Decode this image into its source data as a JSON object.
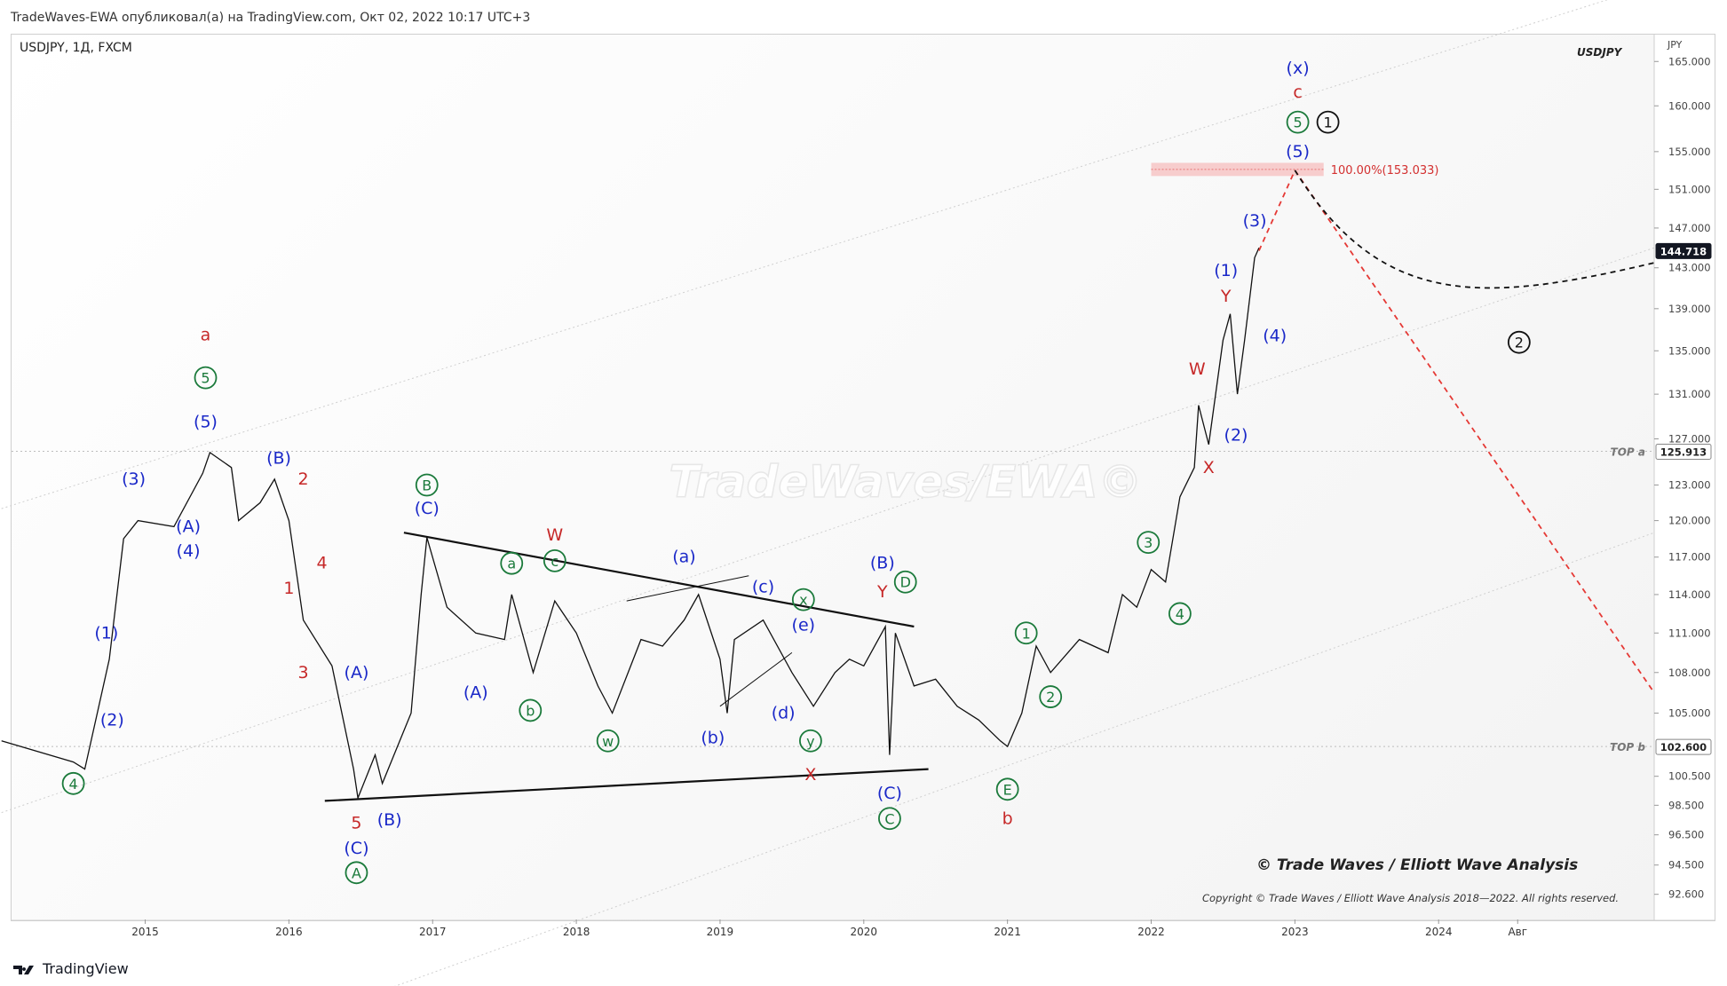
{
  "caption": "TradeWaves-EWA опубликовал(а) на TradingView.com, Окт 02, 2022 10:17 UTC+3",
  "symbol_label": "USDJPY, 1Д, FXCM",
  "symbol_right": "USDJPY",
  "footer_brand": "TradingView",
  "watermark": "TradeWaves/EWA©",
  "copyright_main": "© Trade Waves / Elliott Wave Analysis",
  "copyright_small": "Copyright © Trade Waves / Elliott Wave Analysis 2018—2022. All rights reserved.",
  "chart_data": {
    "type": "line",
    "title": "USDJPY, 1Д, FXCM",
    "ylabel": "JPY",
    "ylim": [
      91,
      168
    ],
    "yscale": "log",
    "y_ticks": [
      92.6,
      94.5,
      96.5,
      98.5,
      100.5,
      105.0,
      108.0,
      111.0,
      114.0,
      117.0,
      120.0,
      123.0,
      127.0,
      131.0,
      135.0,
      139.0,
      143.0,
      147.0,
      151.0,
      155.0,
      160.0,
      165.0
    ],
    "x_ticks": [
      {
        "t": 2015,
        "label": "2015"
      },
      {
        "t": 2016,
        "label": "2016"
      },
      {
        "t": 2017,
        "label": "2017"
      },
      {
        "t": 2018,
        "label": "2018"
      },
      {
        "t": 2019,
        "label": "2019"
      },
      {
        "t": 2020,
        "label": "2020"
      },
      {
        "t": 2021,
        "label": "2021"
      },
      {
        "t": 2022,
        "label": "2022"
      },
      {
        "t": 2023,
        "label": "2023"
      },
      {
        "t": 2024,
        "label": "2024"
      },
      {
        "t": 2024.55,
        "label": "Авг"
      }
    ],
    "xlim": [
      2014.07,
      2025.5
    ],
    "price_badges": [
      {
        "value": 144.718,
        "label": "144.718",
        "style": "dark"
      },
      {
        "value": 125.913,
        "label": "125.913",
        "style": "light"
      },
      {
        "value": 102.6,
        "label": "102.600",
        "style": "light"
      }
    ],
    "level_lines": [
      {
        "value": 125.913,
        "label": "TOP a"
      },
      {
        "value": 102.6,
        "label": "TOP b"
      }
    ],
    "target_zone": {
      "from": 2022.0,
      "to": 2023.2,
      "low": 152.4,
      "high": 153.8,
      "label": "100.00%(153.033)"
    },
    "price_series": {
      "name": "USDJPY",
      "points": [
        [
          2014.0,
          103.0
        ],
        [
          2014.5,
          101.5
        ],
        [
          2014.58,
          101.0
        ],
        [
          2014.75,
          109.0
        ],
        [
          2014.85,
          118.5
        ],
        [
          2014.95,
          120.0
        ],
        [
          2015.2,
          119.5
        ],
        [
          2015.4,
          124.0
        ],
        [
          2015.45,
          125.8
        ],
        [
          2015.6,
          124.5
        ],
        [
          2015.65,
          120.0
        ],
        [
          2015.8,
          121.5
        ],
        [
          2015.9,
          123.5
        ],
        [
          2016.0,
          120.0
        ],
        [
          2016.1,
          112.0
        ],
        [
          2016.3,
          108.5
        ],
        [
          2016.45,
          101.0
        ],
        [
          2016.48,
          99.0
        ],
        [
          2016.6,
          102.0
        ],
        [
          2016.65,
          100.0
        ],
        [
          2016.85,
          105.0
        ],
        [
          2016.92,
          114.0
        ],
        [
          2016.96,
          118.6
        ],
        [
          2017.1,
          113.0
        ],
        [
          2017.3,
          111.0
        ],
        [
          2017.5,
          110.5
        ],
        [
          2017.55,
          114.0
        ],
        [
          2017.7,
          108.0
        ],
        [
          2017.85,
          113.5
        ],
        [
          2018.0,
          111.0
        ],
        [
          2018.15,
          107.0
        ],
        [
          2018.25,
          105.0
        ],
        [
          2018.45,
          110.5
        ],
        [
          2018.6,
          110.0
        ],
        [
          2018.75,
          112.0
        ],
        [
          2018.85,
          114.0
        ],
        [
          2019.0,
          109.0
        ],
        [
          2019.05,
          105.0
        ],
        [
          2019.1,
          110.5
        ],
        [
          2019.3,
          112.0
        ],
        [
          2019.5,
          108.0
        ],
        [
          2019.65,
          105.5
        ],
        [
          2019.8,
          108.0
        ],
        [
          2019.9,
          109.0
        ],
        [
          2020.0,
          108.5
        ],
        [
          2020.15,
          111.5
        ],
        [
          2020.18,
          102.0
        ],
        [
          2020.22,
          111.0
        ],
        [
          2020.35,
          107.0
        ],
        [
          2020.5,
          107.5
        ],
        [
          2020.65,
          105.5
        ],
        [
          2020.8,
          104.5
        ],
        [
          2020.95,
          103.0
        ],
        [
          2021.0,
          102.6
        ],
        [
          2021.1,
          105.0
        ],
        [
          2021.2,
          110.0
        ],
        [
          2021.3,
          108.0
        ],
        [
          2021.5,
          110.5
        ],
        [
          2021.7,
          109.5
        ],
        [
          2021.8,
          114.0
        ],
        [
          2021.9,
          113.0
        ],
        [
          2022.0,
          116.0
        ],
        [
          2022.1,
          115.0
        ],
        [
          2022.2,
          122.0
        ],
        [
          2022.3,
          124.5
        ],
        [
          2022.33,
          130.0
        ],
        [
          2022.4,
          126.5
        ],
        [
          2022.5,
          136.0
        ],
        [
          2022.55,
          138.5
        ],
        [
          2022.6,
          131.0
        ],
        [
          2022.65,
          136.0
        ],
        [
          2022.72,
          144.0
        ],
        [
          2022.75,
          145.0
        ]
      ]
    },
    "projection_path": [
      [
        2022.75,
        144.7
      ],
      [
        2023.0,
        153.0
      ]
    ],
    "projection_down": [
      [
        2023.0,
        153.0
      ],
      [
        2025.5,
        106.5
      ]
    ],
    "projection_curve": [
      [
        2023.0,
        153.0
      ],
      [
        2023.6,
        139.0
      ],
      [
        2024.3,
        139.5
      ],
      [
        2025.5,
        143.5
      ]
    ],
    "trendlines": [
      [
        [
          2016.25,
          98.8
        ],
        [
          2020.45,
          101.0
        ]
      ],
      [
        [
          2016.8,
          119.0
        ],
        [
          2020.35,
          111.5
        ]
      ],
      [
        [
          2018.35,
          113.5
        ],
        [
          2019.2,
          115.5
        ]
      ],
      [
        [
          2019.0,
          105.5
        ],
        [
          2019.5,
          109.5
        ]
      ]
    ],
    "channel_lines": [
      [
        [
          2014.0,
          121.0
        ],
        [
          2025.5,
          174.0
        ]
      ],
      [
        [
          2014.0,
          98.0
        ],
        [
          2025.5,
          145.0
        ]
      ],
      [
        [
          2015.8,
          84.0
        ],
        [
          2025.5,
          119.0
        ]
      ]
    ],
    "wave_labels": [
      {
        "t": 2015.42,
        "v": 136.5,
        "text": "a",
        "color": "#c62828",
        "style": "plain"
      },
      {
        "t": 2015.42,
        "v": 132.5,
        "text": "5",
        "color": "#1b7a3b",
        "style": "circle"
      },
      {
        "t": 2015.42,
        "v": 128.5,
        "text": "(5)",
        "color": "#1a28c8",
        "style": "plain"
      },
      {
        "t": 2014.92,
        "v": 123.5,
        "text": "(3)",
        "color": "#1a28c8",
        "style": "plain"
      },
      {
        "t": 2015.3,
        "v": 119.5,
        "text": "(A)",
        "color": "#1a28c8",
        "style": "plain"
      },
      {
        "t": 2015.3,
        "v": 117.5,
        "text": "(4)",
        "color": "#1a28c8",
        "style": "plain"
      },
      {
        "t": 2015.93,
        "v": 125.3,
        "text": "(B)",
        "color": "#1a28c8",
        "style": "plain"
      },
      {
        "t": 2016.1,
        "v": 123.5,
        "text": "2",
        "color": "#c62828",
        "style": "plain"
      },
      {
        "t": 2016.23,
        "v": 116.5,
        "text": "4",
        "color": "#c62828",
        "style": "plain"
      },
      {
        "t": 2016.0,
        "v": 114.5,
        "text": "1",
        "color": "#c62828",
        "style": "plain"
      },
      {
        "t": 2016.1,
        "v": 108.0,
        "text": "3",
        "color": "#c62828",
        "style": "plain"
      },
      {
        "t": 2016.47,
        "v": 108.0,
        "text": "(A)",
        "color": "#1a28c8",
        "style": "plain"
      },
      {
        "t": 2014.73,
        "v": 111.0,
        "text": "(1)",
        "color": "#1a28c8",
        "style": "plain"
      },
      {
        "t": 2014.77,
        "v": 104.5,
        "text": "(2)",
        "color": "#1a28c8",
        "style": "plain"
      },
      {
        "t": 2014.5,
        "v": 100.0,
        "text": "4",
        "color": "#1b7a3b",
        "style": "circle"
      },
      {
        "t": 2016.47,
        "v": 97.3,
        "text": "5",
        "color": "#c62828",
        "style": "plain"
      },
      {
        "t": 2016.47,
        "v": 95.6,
        "text": "(C)",
        "color": "#1a28c8",
        "style": "plain"
      },
      {
        "t": 2016.47,
        "v": 94.0,
        "text": "A",
        "color": "#1b7a3b",
        "style": "circle"
      },
      {
        "t": 2016.7,
        "v": 97.5,
        "text": "(B)",
        "color": "#1a28c8",
        "style": "plain"
      },
      {
        "t": 2016.96,
        "v": 123.0,
        "text": "B",
        "color": "#1b7a3b",
        "style": "circle"
      },
      {
        "t": 2016.96,
        "v": 121.0,
        "text": "(C)",
        "color": "#1a28c8",
        "style": "plain"
      },
      {
        "t": 2017.3,
        "v": 106.5,
        "text": "(A)",
        "color": "#1a28c8",
        "style": "plain"
      },
      {
        "t": 2017.55,
        "v": 116.5,
        "text": "a",
        "color": "#1b7a3b",
        "style": "circle"
      },
      {
        "t": 2017.68,
        "v": 105.2,
        "text": "b",
        "color": "#1b7a3b",
        "style": "circle"
      },
      {
        "t": 2017.85,
        "v": 118.8,
        "text": "W",
        "color": "#c62828",
        "style": "plain"
      },
      {
        "t": 2017.85,
        "v": 116.7,
        "text": "c",
        "color": "#1b7a3b",
        "style": "circle"
      },
      {
        "t": 2018.22,
        "v": 103.0,
        "text": "w",
        "color": "#1b7a3b",
        "style": "circle"
      },
      {
        "t": 2018.75,
        "v": 117.0,
        "text": "(a)",
        "color": "#1a28c8",
        "style": "plain"
      },
      {
        "t": 2018.95,
        "v": 103.2,
        "text": "(b)",
        "color": "#1a28c8",
        "style": "plain"
      },
      {
        "t": 2019.3,
        "v": 114.6,
        "text": "(c)",
        "color": "#1a28c8",
        "style": "plain"
      },
      {
        "t": 2019.58,
        "v": 113.6,
        "text": "x",
        "color": "#1b7a3b",
        "style": "circle"
      },
      {
        "t": 2019.58,
        "v": 111.6,
        "text": "(e)",
        "color": "#1a28c8",
        "style": "plain"
      },
      {
        "t": 2019.44,
        "v": 105.0,
        "text": "(d)",
        "color": "#1a28c8",
        "style": "plain"
      },
      {
        "t": 2019.63,
        "v": 103.0,
        "text": "y",
        "color": "#1b7a3b",
        "style": "circle"
      },
      {
        "t": 2019.63,
        "v": 100.6,
        "text": "X",
        "color": "#c62828",
        "style": "plain"
      },
      {
        "t": 2020.13,
        "v": 116.5,
        "text": "(B)",
        "color": "#1a28c8",
        "style": "plain"
      },
      {
        "t": 2020.13,
        "v": 114.2,
        "text": "Y",
        "color": "#c62828",
        "style": "plain"
      },
      {
        "t": 2020.29,
        "v": 115.0,
        "text": "D",
        "color": "#1b7a3b",
        "style": "circle"
      },
      {
        "t": 2020.18,
        "v": 99.3,
        "text": "(C)",
        "color": "#1a28c8",
        "style": "plain"
      },
      {
        "t": 2020.18,
        "v": 97.6,
        "text": "C",
        "color": "#1b7a3b",
        "style": "circle"
      },
      {
        "t": 2021.0,
        "v": 99.6,
        "text": "E",
        "color": "#1b7a3b",
        "style": "circle"
      },
      {
        "t": 2021.0,
        "v": 97.6,
        "text": "b",
        "color": "#c62828",
        "style": "plain"
      },
      {
        "t": 2021.13,
        "v": 111.0,
        "text": "1",
        "color": "#1b7a3b",
        "style": "circle"
      },
      {
        "t": 2021.3,
        "v": 106.2,
        "text": "2",
        "color": "#1b7a3b",
        "style": "circle"
      },
      {
        "t": 2021.98,
        "v": 118.2,
        "text": "3",
        "color": "#1b7a3b",
        "style": "circle"
      },
      {
        "t": 2022.2,
        "v": 112.5,
        "text": "4",
        "color": "#1b7a3b",
        "style": "circle"
      },
      {
        "t": 2022.32,
        "v": 133.3,
        "text": "W",
        "color": "#c62828",
        "style": "plain"
      },
      {
        "t": 2022.4,
        "v": 124.5,
        "text": "X",
        "color": "#c62828",
        "style": "plain"
      },
      {
        "t": 2022.59,
        "v": 127.3,
        "text": "(2)",
        "color": "#1a28c8",
        "style": "plain"
      },
      {
        "t": 2022.52,
        "v": 140.2,
        "text": "Y",
        "color": "#c62828",
        "style": "plain"
      },
      {
        "t": 2022.52,
        "v": 142.7,
        "text": "(1)",
        "color": "#1a28c8",
        "style": "plain"
      },
      {
        "t": 2022.72,
        "v": 147.7,
        "text": "(3)",
        "color": "#1a28c8",
        "style": "plain"
      },
      {
        "t": 2022.86,
        "v": 136.4,
        "text": "(4)",
        "color": "#1a28c8",
        "style": "plain"
      },
      {
        "t": 2023.02,
        "v": 155.0,
        "text": "(5)",
        "color": "#1a28c8",
        "style": "plain"
      },
      {
        "t": 2023.02,
        "v": 158.2,
        "text": "5",
        "color": "#1b7a3b",
        "style": "circle"
      },
      {
        "t": 2023.23,
        "v": 158.2,
        "text": "1",
        "color": "#111111",
        "style": "circle"
      },
      {
        "t": 2023.02,
        "v": 161.5,
        "text": "c",
        "color": "#c62828",
        "style": "plain"
      },
      {
        "t": 2023.02,
        "v": 164.2,
        "text": "(x)",
        "color": "#1a28c8",
        "style": "plain"
      },
      {
        "t": 2024.56,
        "v": 135.8,
        "text": "2",
        "color": "#111111",
        "style": "circle"
      }
    ]
  }
}
